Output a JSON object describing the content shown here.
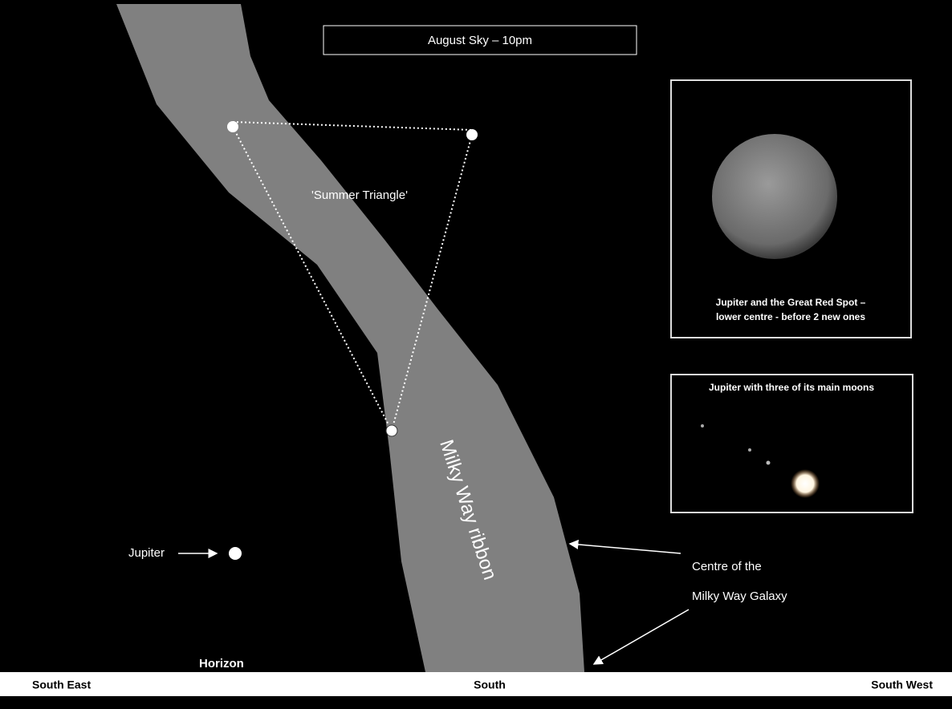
{
  "header": {
    "title": "August Sky – 10pm"
  },
  "sky": {
    "summer_triangle": "'Summer Triangle'",
    "milky_way": "Milky Way ribbon",
    "jupiter": "Jupiter",
    "galaxy_centre": [
      "Centre of the",
      "Milky Way Galaxy"
    ],
    "horizon": "Horizon"
  },
  "insets": [
    {
      "caption": [
        "Jupiter and the Great Red Spot –",
        "lower centre - before 2 new ones"
      ]
    },
    {
      "caption": [
        "Jupiter with three of its main moons"
      ]
    }
  ],
  "directions": [
    "South East",
    "South",
    "South West"
  ]
}
